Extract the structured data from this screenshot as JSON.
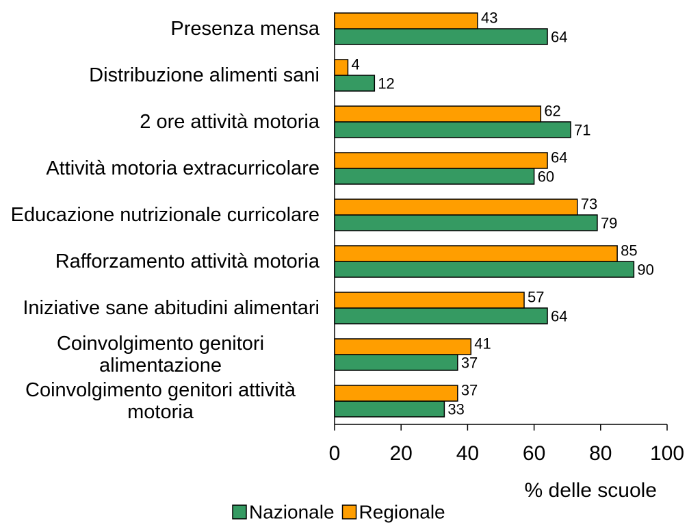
{
  "chart_data": {
    "type": "bar",
    "orientation": "horizontal",
    "categories": [
      "Presenza mensa",
      "Distribuzione alimenti sani",
      "2 ore attività motoria",
      "Attività motoria extracurricolare",
      "Educazione nutrizionale curricolare",
      "Rafforzamento attività motoria",
      "Iniziative sane abitudini alimentari",
      "Coinvolgimento genitori alimentazione",
      "Coinvolgimento genitori attività motoria"
    ],
    "series": [
      {
        "name": "Nazionale",
        "color": "#359a62",
        "values": [
          64,
          12,
          71,
          60,
          79,
          90,
          64,
          37,
          33
        ]
      },
      {
        "name": "Regionale",
        "color": "#ff9e00",
        "values": [
          43,
          4,
          62,
          64,
          73,
          85,
          57,
          41,
          37
        ]
      }
    ],
    "xlabel": "% delle scuole",
    "xlim": [
      0,
      100
    ],
    "xticks": [
      0,
      20,
      40,
      60,
      80,
      100
    ],
    "legend": "bottom"
  }
}
